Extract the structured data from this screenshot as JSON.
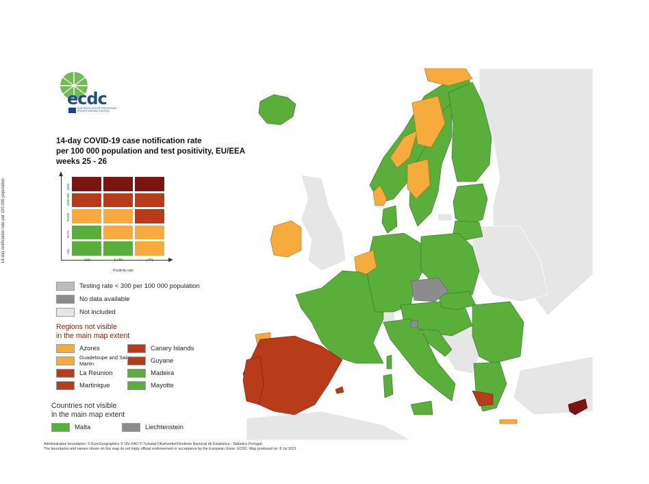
{
  "logo": {
    "name": "ecdc",
    "subtitle": "EUROPEAN CENTRE FOR DISEASE PREVENTION AND CONTROL"
  },
  "title": {
    "line1": "14-day COVID-19 case notification rate",
    "line2": "per 100 000 population and test positivity, EU/EEA",
    "line3": "weeks 25 - 26"
  },
  "matrix": {
    "y_axis_label": "14-day notification rate per 100 000 population",
    "x_axis_label": "Positivity rate",
    "y_ticks": [
      "≥500",
      "≥200-499",
      "75-200",
      "50-74",
      "<50"
    ],
    "x_ticks": [
      "<1%",
      "1<4%",
      "≥4%"
    ],
    "colors": [
      [
        "#7b1511",
        "#7b1511",
        "#7b1511"
      ],
      [
        "#b83c1a",
        "#b83c1a",
        "#b83c1a"
      ],
      [
        "#f6ab3c",
        "#f6ab3c",
        "#b83c1a"
      ],
      [
        "#5aaf3a",
        "#f6ab3c",
        "#f6ab3c"
      ],
      [
        "#5aaf3a",
        "#5aaf3a",
        "#f6ab3c"
      ]
    ]
  },
  "legend_status": [
    {
      "label": "Testing rate < 300 per 100 000 population",
      "color": "#bdbdbd"
    },
    {
      "label": "No data available",
      "color": "#8c8c8c"
    },
    {
      "label": "Not included",
      "color": "#e6e6e6"
    }
  ],
  "regions_heading_1": "Regions not visible",
  "regions_heading_2": "in the main map extent",
  "regions": [
    {
      "label": "Azores",
      "color": "#f6ab3c"
    },
    {
      "label": "Canary Islands",
      "color": "#b83c1a"
    },
    {
      "label": "Guadeloupe and Saint Martin",
      "color": "#f6ab3c"
    },
    {
      "label": "Guyane",
      "color": "#b83c1a"
    },
    {
      "label": "La Reunion",
      "color": "#b83c1a"
    },
    {
      "label": "Madeira",
      "color": "#5aaf3a"
    },
    {
      "label": "Martinique",
      "color": "#b83c1a"
    },
    {
      "label": "Mayotte",
      "color": "#5aaf3a"
    }
  ],
  "countries_heading_1": "Countries not visible",
  "countries_heading_2": "in the main map extent",
  "countries": [
    {
      "label": "Malta",
      "color": "#5aaf3a"
    },
    {
      "label": "Liechtenstein",
      "color": "#8c8c8c"
    }
  ],
  "footer": {
    "line1": "Administrative boundaries: © EuroGeographics © UN–FAO © Turkstat.©Kartverket©Instituto Nacional de Estatística - Statistics Portugal.",
    "line2": "The boundaries and names shown on this map do not imply official endorsement or acceptance by the European Union. ECDC. Map produced on: 8 Jul 2021"
  },
  "colors": {
    "green": "#5aaf3a",
    "orange": "#f6ab3c",
    "red": "#b83c1a",
    "dark_red": "#7b1511",
    "gray_testing": "#bdbdbd",
    "gray_nodata": "#8c8c8c",
    "not_included": "#e6e6e6",
    "sea": "#ffffff"
  }
}
